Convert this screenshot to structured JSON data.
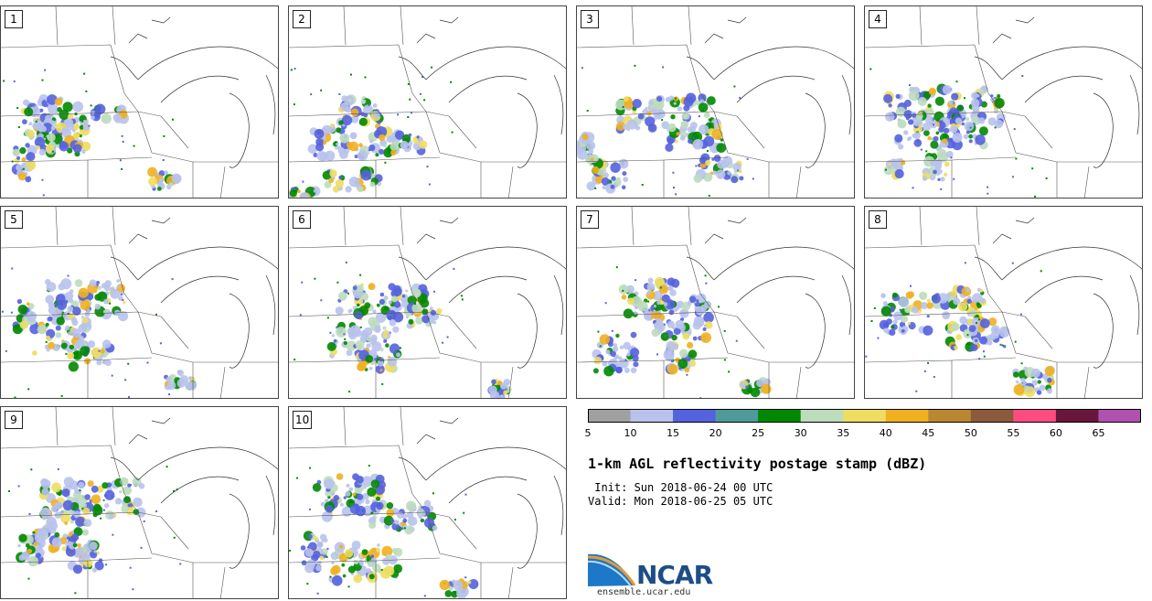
{
  "panels": [
    {
      "label": "1",
      "cells": [
        [
          25,
          100,
          70,
          45
        ],
        [
          40,
          125,
          55,
          40
        ],
        [
          15,
          150,
          20,
          40
        ],
        [
          165,
          180,
          28,
          20
        ],
        [
          100,
          110,
          35,
          15
        ]
      ]
    },
    {
      "label": "2",
      "cells": [
        [
          25,
          130,
          95,
          35
        ],
        [
          55,
          100,
          45,
          30
        ],
        [
          105,
          140,
          45,
          20
        ],
        [
          40,
          180,
          60,
          20
        ],
        [
          0,
          200,
          30,
          10
        ]
      ]
    },
    {
      "label": "3",
      "cells": [
        [
          45,
          100,
          110,
          35
        ],
        [
          100,
          130,
          60,
          25
        ],
        [
          130,
          165,
          50,
          25
        ],
        [
          15,
          170,
          40,
          30
        ],
        [
          0,
          140,
          20,
          30
        ]
      ]
    },
    {
      "label": "4",
      "cells": [
        [
          25,
          90,
          125,
          40
        ],
        [
          35,
          115,
          95,
          40
        ],
        [
          65,
          160,
          30,
          30
        ],
        [
          25,
          165,
          20,
          20
        ]
      ]
    },
    {
      "label": "5",
      "cells": [
        [
          45,
          80,
          90,
          40
        ],
        [
          35,
          120,
          60,
          40
        ],
        [
          75,
          150,
          45,
          25
        ],
        [
          15,
          100,
          20,
          35
        ],
        [
          180,
          180,
          30,
          20
        ]
      ]
    },
    {
      "label": "6",
      "cells": [
        [
          55,
          85,
          95,
          40
        ],
        [
          45,
          125,
          75,
          40
        ],
        [
          75,
          160,
          40,
          20
        ],
        [
          130,
          110,
          35,
          20
        ],
        [
          215,
          190,
          25,
          20
        ]
      ]
    },
    {
      "label": "7",
      "cells": [
        [
          50,
          80,
          60,
          40
        ],
        [
          85,
          100,
          60,
          45
        ],
        [
          20,
          140,
          45,
          40
        ],
        [
          100,
          150,
          30,
          30
        ],
        [
          180,
          190,
          30,
          15
        ]
      ]
    },
    {
      "label": "8",
      "cells": [
        [
          20,
          95,
          50,
          45
        ],
        [
          70,
          90,
          60,
          35
        ],
        [
          90,
          125,
          65,
          30
        ],
        [
          165,
          175,
          40,
          30
        ]
      ]
    },
    {
      "label": "9",
      "cells": [
        [
          45,
          80,
          110,
          40
        ],
        [
          30,
          115,
          70,
          40
        ],
        [
          75,
          150,
          35,
          30
        ],
        [
          20,
          135,
          25,
          35
        ]
      ]
    },
    {
      "label": "10",
      "cells": [
        [
          30,
          75,
          75,
          45
        ],
        [
          90,
          105,
          70,
          30
        ],
        [
          45,
          150,
          75,
          40
        ],
        [
          15,
          140,
          25,
          40
        ],
        [
          170,
          190,
          35,
          15
        ]
      ]
    }
  ],
  "colorbar": {
    "colors": [
      "#a0a0a0",
      "#b8c2ec",
      "#5462de",
      "#4e9a9a",
      "#008800",
      "#bcdcbc",
      "#eedd60",
      "#f0b020",
      "#ba8630",
      "#8b5a3c",
      "#ff4c80",
      "#68163c",
      "#b050b0"
    ],
    "ticks": [
      "5",
      "10",
      "15",
      "20",
      "25",
      "30",
      "35",
      "40",
      "45",
      "50",
      "55",
      "60",
      "65"
    ]
  },
  "title": "1-km AGL reflectivity postage stamp (dBZ)",
  "init": " Init: Sun 2018-06-24 00 UTC",
  "valid": "Valid: Mon 2018-06-25 05 UTC",
  "logo": {
    "text": "NCAR",
    "site": "ensemble.ucar.edu",
    "colors": [
      "#1d4d87",
      "#3e8dd6",
      "#e89a30"
    ]
  }
}
